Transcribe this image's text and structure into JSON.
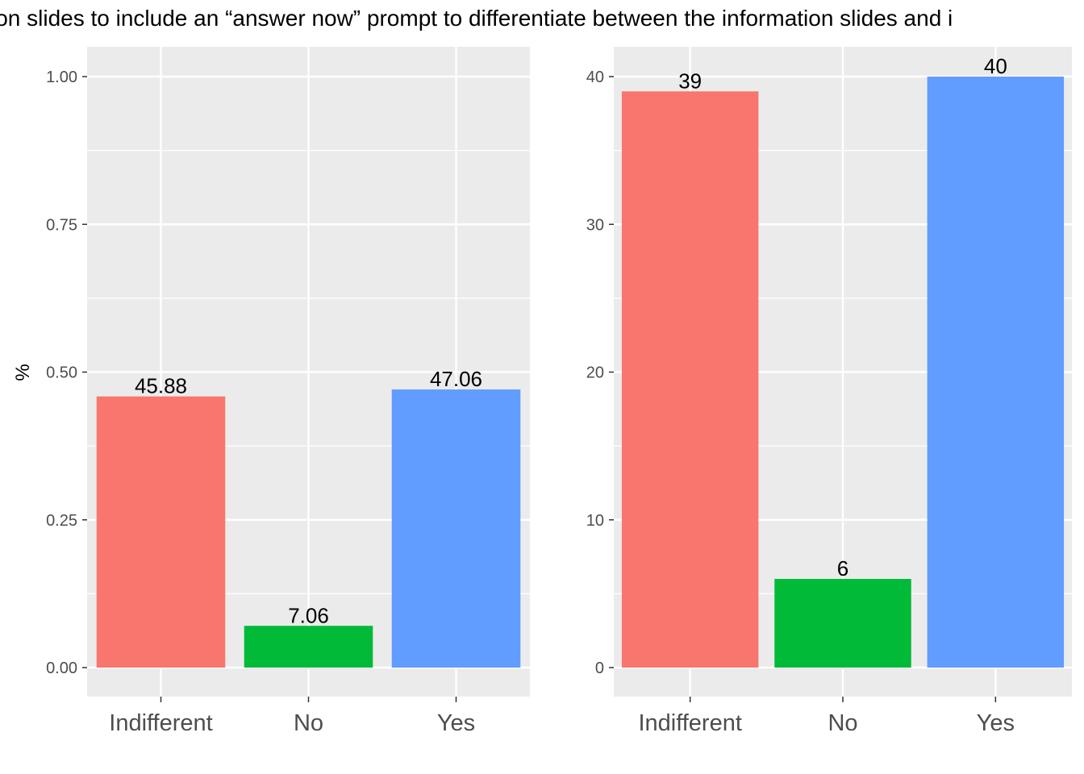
{
  "title": "ion slides to include an “answer now” prompt to differentiate between the information slides and i",
  "colors": {
    "panel_background": "#EBEBEB",
    "grid": "#FFFFFF",
    "tick_mark": "#333333"
  },
  "chart_data": [
    {
      "type": "bar",
      "categories": [
        "Indifferent",
        "No",
        "Yes"
      ],
      "values": [
        0.4588,
        0.0706,
        0.4706
      ],
      "data_labels": [
        "45.88",
        "7.06",
        "47.06"
      ],
      "colors": [
        "#F8766D",
        "#00BA38",
        "#619CFF"
      ],
      "ylabel": "%",
      "ylim": [
        0,
        1.05
      ],
      "yticks": [
        0,
        0.25,
        0.5,
        0.75,
        1.0
      ],
      "ytick_labels": [
        "0.00",
        "0.25",
        "0.50",
        "0.75",
        "1.00"
      ],
      "grid": true,
      "legend": "none"
    },
    {
      "type": "bar",
      "categories": [
        "Indifferent",
        "No",
        "Yes"
      ],
      "values": [
        39,
        6,
        40
      ],
      "data_labels": [
        "39",
        "6",
        "40"
      ],
      "colors": [
        "#F8766D",
        "#00BA38",
        "#619CFF"
      ],
      "ylabel": "",
      "ylim": [
        0,
        42
      ],
      "yticks": [
        0,
        10,
        20,
        30,
        40
      ],
      "ytick_labels": [
        "0",
        "10",
        "20",
        "30",
        "40"
      ],
      "grid": true,
      "legend": "none"
    }
  ]
}
